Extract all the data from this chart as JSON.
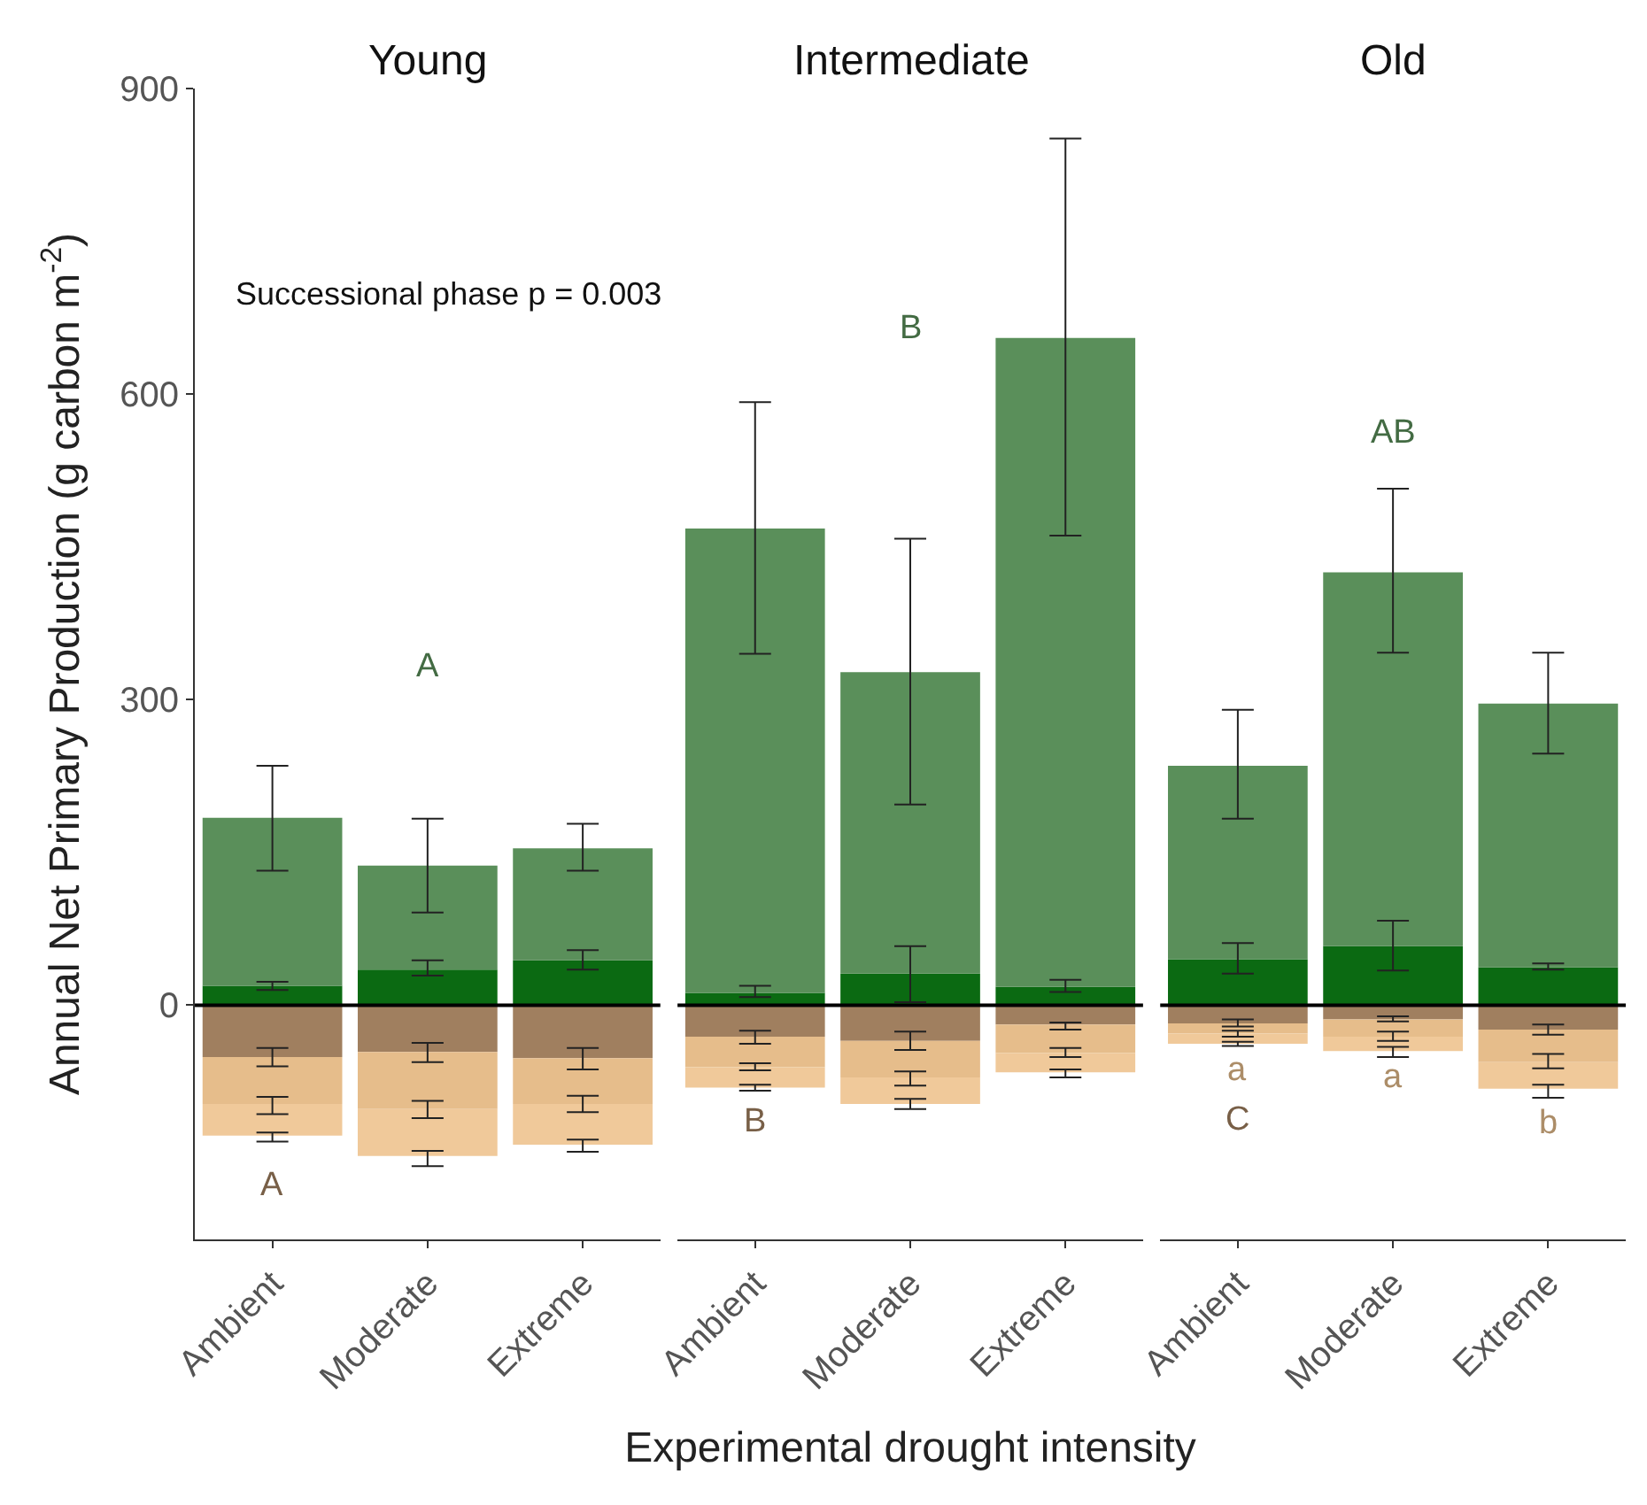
{
  "chart_data": [
    {
      "type": "bar",
      "title": "Young",
      "ylabel": "Annual Net Primary Production (g carbon m$^{-2}$)",
      "categories": [
        "Ambient",
        "Moderate",
        "Extreme"
      ],
      "stacked": true,
      "ylim": [
        -230,
        900
      ],
      "yticks": [
        0,
        300,
        600,
        900
      ],
      "series": [
        {
          "color": "#0b6a12",
          "values": [
            19,
            35,
            44
          ],
          "errors": [
            [
              15,
              23
            ],
            [
              29,
              44
            ],
            [
              35,
              54
            ]
          ]
        },
        {
          "color": "#5a8f5a",
          "values": [
            165,
            102,
            110
          ],
          "errors": [
            [
              132,
              235
            ],
            [
              91,
              183
            ],
            [
              132,
              178
            ]
          ]
        },
        {
          "color": "#a07f5f",
          "values": [
            -51,
            -46,
            -52
          ],
          "errors": [
            [
              -60,
              -42
            ],
            [
              -56,
              -37
            ],
            [
              -63,
              -42
            ]
          ]
        },
        {
          "color": "#e6bd8b",
          "values": [
            -46,
            -56,
            -45
          ],
          "errors": [
            [
              -107,
              -90
            ],
            [
              -111,
              -94
            ],
            [
              -105,
              -89
            ]
          ]
        },
        {
          "color": "#f0c99a",
          "values": [
            -31,
            -46,
            -40
          ],
          "errors": [
            [
              -134,
              -125
            ],
            [
              -158,
              -143
            ],
            [
              -144,
              -132
            ]
          ]
        }
      ],
      "ref_lines": [
        {
          "axis": "y",
          "value": 0,
          "color": "#000000"
        }
      ],
      "annotations": [
        "A",
        "A",
        "Successional phase p = 0.003"
      ]
    },
    {
      "type": "bar",
      "title": "Intermediate",
      "xlabel": "Experimental drought intensity",
      "categories": [
        "Ambient",
        "Moderate",
        "Extreme"
      ],
      "stacked": true,
      "ylim": [
        -230,
        900
      ],
      "yticks": [
        0,
        300,
        600,
        900
      ],
      "tick_labels": "x",
      "series": [
        {
          "color": "#0b6a12",
          "values": [
            12,
            31,
            18
          ],
          "errors": [
            [
              8,
              19
            ],
            [
              3,
              58
            ],
            [
              13,
              25
            ]
          ]
        },
        {
          "color": "#5a8f5a",
          "values": [
            456,
            296,
            637
          ],
          "errors": [
            [
              345,
              592
            ],
            [
              197,
              458
            ],
            [
              461,
              851
            ]
          ]
        },
        {
          "color": "#a07f5f",
          "values": [
            -31,
            -35,
            -19
          ],
          "errors": [
            [
              -38,
              -25
            ],
            [
              -44,
              -26
            ],
            [
              -24,
              -17
            ]
          ]
        },
        {
          "color": "#e6bd8b",
          "values": [
            -30,
            -36,
            -28
          ],
          "errors": [
            [
              -64,
              -57
            ],
            [
              -79,
              -65
            ],
            [
              -51,
              -42
            ]
          ]
        },
        {
          "color": "#f0c99a",
          "values": [
            -20,
            -26,
            -19
          ],
          "errors": [
            [
              -84,
              -78
            ],
            [
              -102,
              -92
            ],
            [
              -71,
              -63
            ]
          ]
        }
      ],
      "ref_lines": [
        {
          "axis": "y",
          "value": 0,
          "color": "#000000"
        }
      ],
      "annotations": [
        "B",
        "B"
      ]
    },
    {
      "type": "bar",
      "title": "Old",
      "categories": [
        "Ambient",
        "Moderate",
        "Extreme"
      ],
      "stacked": true,
      "ylim": [
        -230,
        900
      ],
      "yticks": [
        0,
        300,
        600,
        900
      ],
      "tick_labels": "x",
      "series": [
        {
          "color": "#0b6a12",
          "values": [
            45,
            58,
            37
          ],
          "errors": [
            [
              31,
              61
            ],
            [
              34,
              83
            ],
            [
              35,
              41
            ]
          ]
        },
        {
          "color": "#5a8f5a",
          "values": [
            190,
            367,
            259
          ],
          "errors": [
            [
              183,
              290
            ],
            [
              346,
              507
            ],
            [
              247,
              346
            ]
          ]
        },
        {
          "color": "#a07f5f",
          "values": [
            -18,
            -14,
            -24
          ],
          "errors": [
            [
              -21,
              -14
            ],
            [
              -16,
              -11
            ],
            [
              -29,
              -19
            ]
          ]
        },
        {
          "color": "#e6bd8b",
          "values": [
            -10,
            -17,
            -32
          ],
          "errors": [
            [
              -31,
              -25
            ],
            [
              -35,
              -26
            ],
            [
              -62,
              -48
            ]
          ]
        },
        {
          "color": "#f0c99a",
          "values": [
            -10,
            -14,
            -26
          ],
          "errors": [
            [
              -40,
              -36
            ],
            [
              -51,
              -41
            ],
            [
              -91,
              -78
            ]
          ]
        }
      ],
      "ref_lines": [
        {
          "axis": "y",
          "value": 0,
          "color": "#000000"
        }
      ],
      "annotations": [
        "AB",
        "a",
        "a",
        "b",
        "C"
      ]
    }
  ]
}
